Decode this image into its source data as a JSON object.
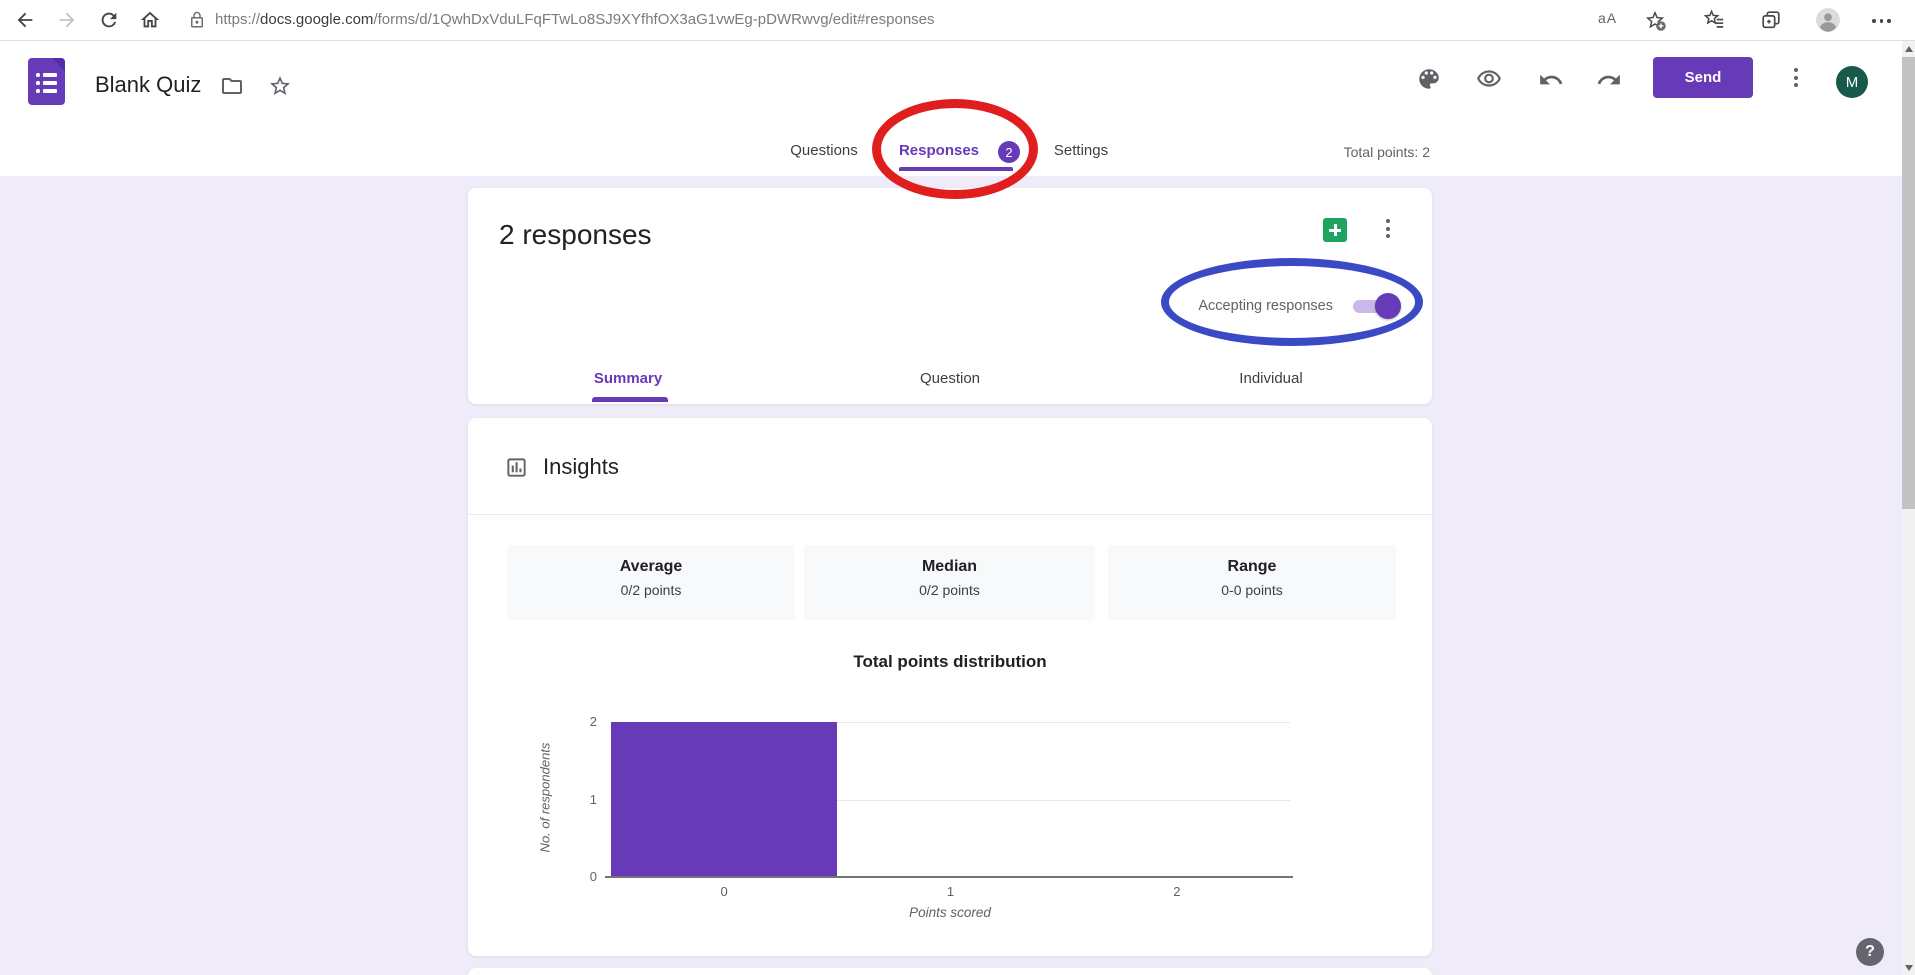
{
  "browser": {
    "url_scheme": "https://",
    "url_host": "docs.google.com",
    "url_path": "/forms/d/1QwhDxVduLFqFTwLo8SJ9XYfhfOX3aG1vwEg-pDWRwvg/edit#responses",
    "translate_label": "aA"
  },
  "form_header": {
    "title": "Blank Quiz",
    "send_button": "Send",
    "avatar_letter": "M"
  },
  "nav_tabs": {
    "items": [
      {
        "label": "Questions",
        "active": false
      },
      {
        "label": "Responses",
        "active": true,
        "badge": "2"
      },
      {
        "label": "Settings",
        "active": false
      }
    ],
    "total_points": "Total points: 2"
  },
  "responses_card": {
    "heading": "2 responses",
    "accepting_label": "Accepting responses",
    "toggle_on": true,
    "subtabs": [
      {
        "label": "Summary",
        "active": true
      },
      {
        "label": "Question",
        "active": false
      },
      {
        "label": "Individual",
        "active": false
      }
    ]
  },
  "insights_card": {
    "title": "Insights",
    "stats": [
      {
        "label": "Average",
        "value": "0/2 points"
      },
      {
        "label": "Median",
        "value": "0/2 points"
      },
      {
        "label": "Range",
        "value": "0-0 points"
      }
    ]
  },
  "chart_data": {
    "type": "bar",
    "title": "Total points distribution",
    "xlabel": "Points scored",
    "ylabel": "No. of respondents",
    "categories": [
      "0",
      "1",
      "2"
    ],
    "values": [
      2,
      0,
      0
    ],
    "ylim": [
      0,
      2
    ],
    "yticks": [
      0,
      1,
      2
    ],
    "grid": true,
    "legend": "none",
    "bar_color": "#673ab7"
  },
  "annotations": {
    "responses_circle_color": "#e01e1e",
    "accepting_circle_color": "#3a49c4"
  },
  "colors": {
    "accent_purple": "#673ab7",
    "page_background": "#f0ebf8",
    "sheets_green": "#1ea362",
    "avatar_green": "#17594a"
  },
  "help_label": "?"
}
